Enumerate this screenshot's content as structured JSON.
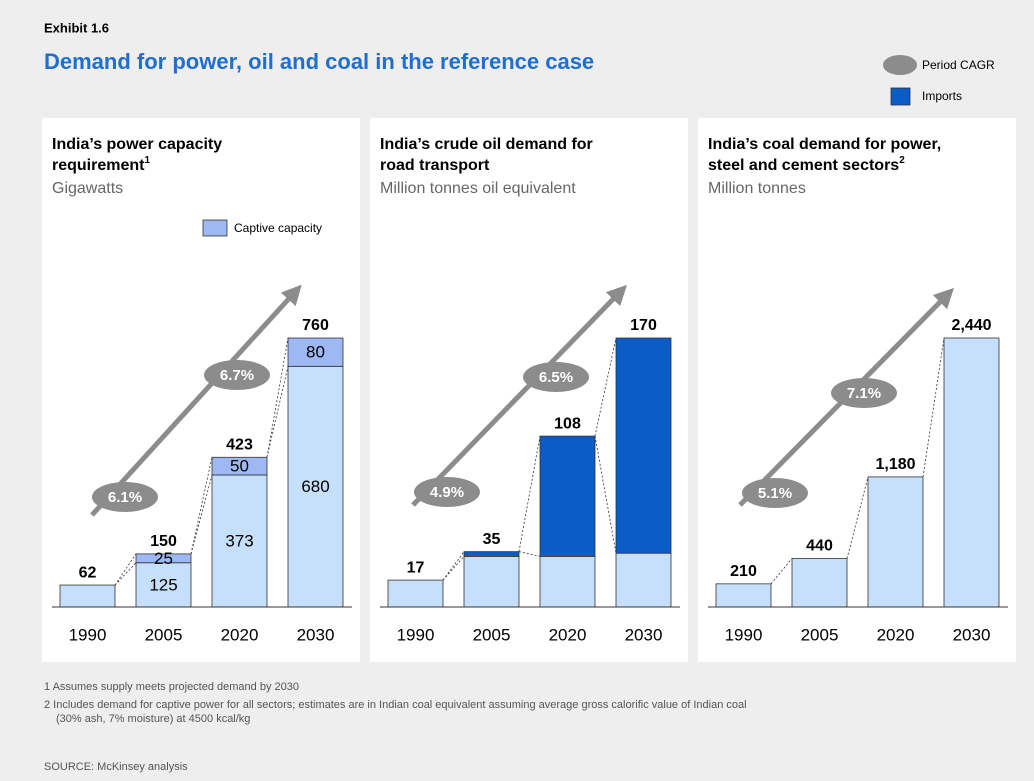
{
  "exhibit": "Exhibit 1.6",
  "title": "Demand for power, oil and coal in the reference case",
  "cagr_legend": "Period CAGR",
  "chart_data": [
    {
      "type": "bar",
      "title_lines": [
        "India’s power capacity",
        "requirement"
      ],
      "title_note": "1",
      "unit": "Gigawatts",
      "categories": [
        "1990",
        "2005",
        "2020",
        "2030"
      ],
      "ylim": [
        0,
        760
      ],
      "segment_labels": true,
      "series": [
        {
          "color": "#c6dffa",
          "values": [
            62,
            125,
            373,
            680
          ]
        },
        {
          "name": "Captive capacity",
          "color": "#9db8f3",
          "values": [
            null,
            25,
            50,
            80
          ]
        }
      ],
      "totals": [
        62,
        150,
        423,
        760
      ],
      "total_labels": [
        "62",
        "150",
        "423",
        "760"
      ],
      "cagr": {
        "values": [
          6.1,
          6.7
        ],
        "labels": [
          "6.1%",
          "6.7%"
        ]
      }
    },
    {
      "type": "bar",
      "title_lines": [
        "India’s crude oil demand for",
        "road transport"
      ],
      "unit": "Million tonnes oil equivalent",
      "categories": [
        "1990",
        "2005",
        "2020",
        "2030"
      ],
      "ylim": [
        0,
        170
      ],
      "segment_labels": false,
      "series": [
        {
          "color": "#c6dffa",
          "values": [
            17,
            32,
            32,
            34
          ]
        },
        {
          "name": "Imports",
          "color": "#0b5cc7",
          "values": [
            null,
            3,
            76,
            136
          ]
        }
      ],
      "totals": [
        17,
        35,
        108,
        170
      ],
      "total_labels": [
        "17",
        "35",
        "108",
        "170"
      ],
      "cagr": {
        "values": [
          4.9,
          6.5
        ],
        "labels": [
          "4.9%",
          "6.5%"
        ]
      }
    },
    {
      "type": "bar",
      "title_lines": [
        "India’s coal demand for power,",
        "steel and cement sectors"
      ],
      "title_note": "2",
      "unit": "Million tonnes",
      "categories": [
        "1990",
        "2005",
        "2020",
        "2030"
      ],
      "ylim": [
        0,
        2440
      ],
      "segment_labels": false,
      "series": [
        {
          "color": "#c6dffa",
          "values": [
            210,
            440,
            1180,
            2440
          ]
        }
      ],
      "totals": [
        210,
        440,
        1180,
        2440
      ],
      "total_labels": [
        "210",
        "440",
        "1,180",
        "2,440"
      ],
      "cagr": {
        "values": [
          5.1,
          7.1
        ],
        "labels": [
          "5.1%",
          "7.1%"
        ]
      }
    }
  ],
  "footnotes": [
    "1 Assumes supply meets projected demand by 2030",
    "2 Includes demand for captive power for all sectors; estimates are in Indian coal equivalent assuming average gross calorific value of Indian coal",
    "(30% ash, 7% moisture) at 4500 kcal/kg"
  ],
  "source": "SOURCE: McKinsey analysis"
}
